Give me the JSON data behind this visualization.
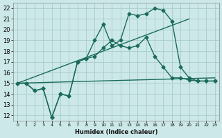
{
  "xlabel": "Humidex (Indice chaleur)",
  "xlim": [
    -0.5,
    23.5
  ],
  "ylim": [
    11.5,
    22.5
  ],
  "xticks": [
    0,
    1,
    2,
    3,
    4,
    5,
    6,
    7,
    8,
    9,
    10,
    11,
    12,
    13,
    14,
    15,
    16,
    17,
    18,
    19,
    20,
    21,
    22,
    23
  ],
  "yticks": [
    12,
    13,
    14,
    15,
    16,
    17,
    18,
    19,
    20,
    21,
    22
  ],
  "background_color": "#cce8e8",
  "grid_color": "#aacccc",
  "line_color": "#1a6b5a",
  "lines": [
    {
      "x": [
        0,
        1,
        2,
        3,
        4,
        5,
        6,
        7,
        8,
        9,
        10,
        11,
        12,
        13,
        14,
        15,
        16,
        17,
        18,
        19,
        20,
        21,
        22,
        23
      ],
      "y": [
        15,
        15,
        14.3,
        14.5,
        11.8,
        14.0,
        13.8,
        17.0,
        17.3,
        17.5,
        18.3,
        19.0,
        18.5,
        18.3,
        18.5,
        19.3,
        17.5,
        16.5,
        15.5,
        15.5,
        15.3,
        15.2,
        15.2,
        15.2
      ],
      "marker": "D",
      "markersize": 2.5,
      "linewidth": 1.0
    },
    {
      "x": [
        0,
        1,
        2,
        3,
        4,
        5,
        6,
        7,
        8,
        9,
        10,
        11,
        12,
        13,
        14,
        15,
        16,
        17,
        18,
        19,
        20,
        21,
        22,
        23
      ],
      "y": [
        15,
        15,
        14.3,
        14.5,
        11.8,
        14.0,
        13.8,
        17.0,
        17.3,
        19.0,
        20.5,
        18.5,
        19.0,
        21.5,
        21.3,
        21.5,
        22.0,
        21.8,
        20.8,
        16.5,
        15.5,
        15.2,
        15.2,
        15.2
      ],
      "marker": "D",
      "markersize": 2.5,
      "linewidth": 1.0
    },
    {
      "x": [
        0,
        20
      ],
      "y": [
        15.0,
        21.0
      ],
      "marker": null,
      "markersize": 0,
      "linewidth": 1.0
    },
    {
      "x": [
        0,
        23
      ],
      "y": [
        15.0,
        15.5
      ],
      "marker": null,
      "markersize": 0,
      "linewidth": 1.0
    }
  ]
}
